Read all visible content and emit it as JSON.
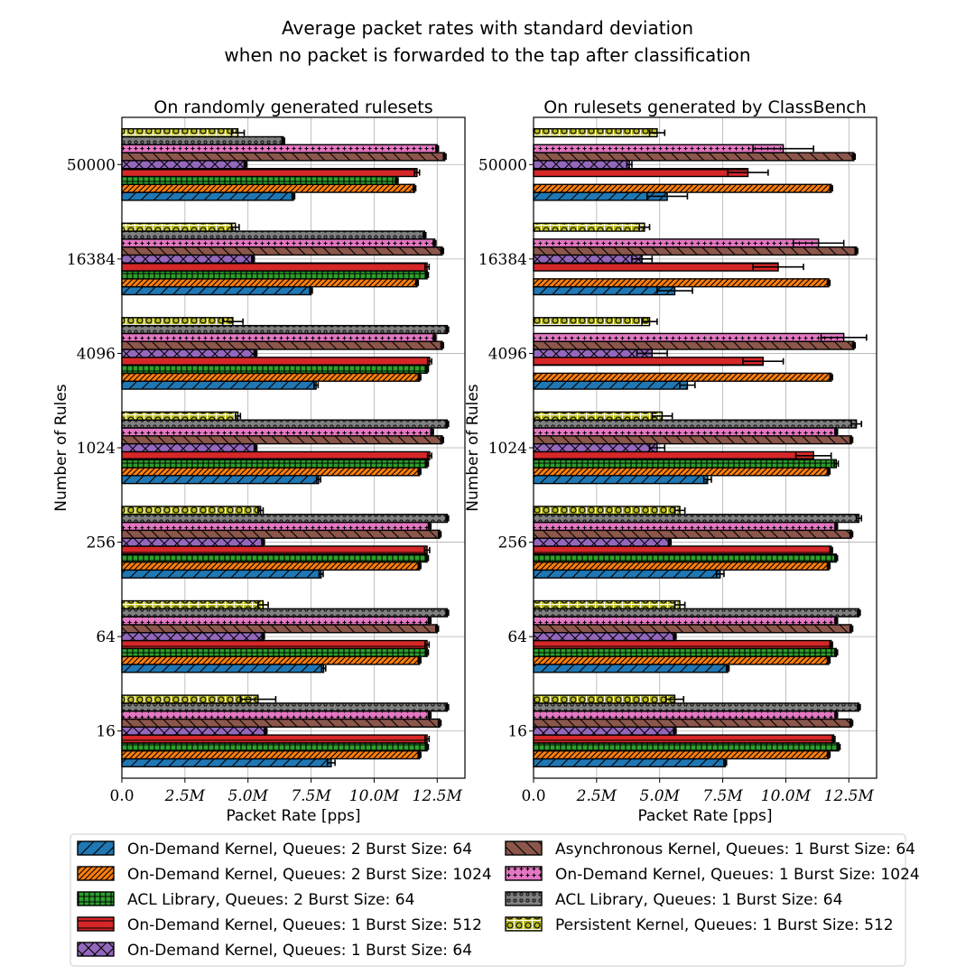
{
  "chart_data": {
    "type": "bar",
    "orientation": "horizontal",
    "title": "Average packet rates with standard deviation",
    "subtitle": "when no packet is forwarded to the tap after classification",
    "xlabel": "Packet Rate [pps]",
    "ylabel": "Number of Rules",
    "categories": [
      "16",
      "64",
      "256",
      "1024",
      "4096",
      "16384",
      "50000"
    ],
    "xlim": [
      0,
      13.6
    ],
    "x_unit": "M pps",
    "xticks": [
      "0.0",
      "2.5M",
      "5.0M",
      "7.5M",
      "10.0M",
      "12.5M"
    ],
    "grid": true,
    "legend_position": "bottom",
    "series": [
      {
        "name": "On-Demand Kernel, Queues: 2 Burst Size: 64",
        "color": "#1f77b4",
        "hatch": "diag"
      },
      {
        "name": "On-Demand Kernel, Queues: 2 Burst Size: 1024",
        "color": "#ff7f0e",
        "hatch": "diag-dense"
      },
      {
        "name": "ACL Library, Queues: 2 Burst Size: 64",
        "color": "#2ca02c",
        "hatch": "grid"
      },
      {
        "name": "On-Demand Kernel, Queues: 1 Burst Size: 512",
        "color": "#d62728",
        "hatch": "hline"
      },
      {
        "name": "On-Demand Kernel, Queues: 1 Burst Size: 64",
        "color": "#9467bd",
        "hatch": "cross"
      },
      {
        "name": "Asynchronous Kernel, Queues: 1 Burst Size: 64",
        "color": "#8c564b",
        "hatch": "backdiag"
      },
      {
        "name": "On-Demand Kernel, Queues: 1 Burst Size: 1024",
        "color": "#e377c2",
        "hatch": "plus"
      },
      {
        "name": "ACL Library, Queues: 1 Burst Size: 64",
        "color": "#7f7f7f",
        "hatch": "dots"
      },
      {
        "name": "Persistent Kernel, Queues: 1 Burst Size: 512",
        "color": "#bcbd22",
        "hatch": "circles"
      }
    ],
    "panels": [
      {
        "title": "On randomly generated rulesets",
        "values": [
          [
            8.3,
            8.0,
            7.9,
            7.8,
            7.7,
            7.5,
            6.8
          ],
          [
            11.8,
            11.8,
            11.8,
            11.8,
            11.8,
            11.7,
            11.6
          ],
          [
            12.1,
            12.1,
            12.1,
            12.1,
            12.1,
            12.1,
            10.9
          ],
          [
            12.1,
            12.1,
            12.1,
            12.2,
            12.2,
            12.1,
            11.7
          ],
          [
            5.7,
            5.6,
            5.6,
            5.3,
            5.3,
            5.2,
            4.9
          ],
          [
            12.6,
            12.5,
            12.6,
            12.7,
            12.7,
            12.7,
            12.8
          ],
          [
            12.2,
            12.2,
            12.2,
            12.3,
            12.4,
            12.4,
            12.5
          ],
          [
            12.9,
            12.9,
            12.9,
            12.9,
            12.9,
            12.0,
            6.4
          ],
          [
            5.4,
            5.6,
            5.5,
            4.6,
            4.4,
            4.5,
            4.6
          ]
        ],
        "errors": [
          [
            0.15,
            0.08,
            0.08,
            0.08,
            0.08,
            0.05,
            0.05
          ],
          [
            0.05,
            0.05,
            0.05,
            0.05,
            0.05,
            0.05,
            0.05
          ],
          [
            0.05,
            0.05,
            0.05,
            0.05,
            0.05,
            0.05,
            0.05
          ],
          [
            0.08,
            0.08,
            0.1,
            0.08,
            0.08,
            0.08,
            0.1
          ],
          [
            0.05,
            0.05,
            0.05,
            0.05,
            0.05,
            0.05,
            0.05
          ],
          [
            0.05,
            0.05,
            0.05,
            0.05,
            0.05,
            0.05,
            0.05
          ],
          [
            0.05,
            0.05,
            0.05,
            0.05,
            0.05,
            0.05,
            0.05
          ],
          [
            0.05,
            0.05,
            0.05,
            0.05,
            0.05,
            0.05,
            0.05
          ],
          [
            0.7,
            0.2,
            0.1,
            0.1,
            0.4,
            0.15,
            0.25
          ]
        ]
      },
      {
        "title": "On rulesets generated by ClassBench",
        "values": [
          [
            7.6,
            7.7,
            7.4,
            6.9,
            6.1,
            5.6,
            5.3
          ],
          [
            11.7,
            11.7,
            11.7,
            11.7,
            11.8,
            11.7,
            11.8
          ],
          [
            12.1,
            12.0,
            12.0,
            12.0,
            0,
            0,
            0
          ],
          [
            11.9,
            11.8,
            11.8,
            11.1,
            9.1,
            9.7,
            8.5
          ],
          [
            5.6,
            5.6,
            5.4,
            4.9,
            4.7,
            4.3,
            3.8
          ],
          [
            12.6,
            12.6,
            12.6,
            12.6,
            12.7,
            12.8,
            12.7
          ],
          [
            12.0,
            12.0,
            12.0,
            12.0,
            12.3,
            11.3,
            9.9
          ],
          [
            12.9,
            12.9,
            12.9,
            12.8,
            0,
            0,
            0
          ],
          [
            5.6,
            5.8,
            5.8,
            5.1,
            4.6,
            4.4,
            4.9
          ]
        ],
        "errors": [
          [
            0.05,
            0.05,
            0.15,
            0.15,
            0.3,
            0.7,
            0.8
          ],
          [
            0.05,
            0.05,
            0.05,
            0.05,
            0.05,
            0.05,
            0.05
          ],
          [
            0.05,
            0.05,
            0.05,
            0.08,
            0,
            0,
            0
          ],
          [
            0.05,
            0.05,
            0.05,
            0.7,
            0.8,
            1.0,
            0.8
          ],
          [
            0.05,
            0.05,
            0.05,
            0.3,
            0.6,
            0.4,
            0.1
          ],
          [
            0.05,
            0.05,
            0.05,
            0.05,
            0.05,
            0.05,
            0.05
          ],
          [
            0.05,
            0.05,
            0.05,
            0.05,
            0.9,
            1.0,
            1.2
          ],
          [
            0.05,
            0.05,
            0.1,
            0.2,
            0,
            0,
            0
          ],
          [
            0.35,
            0.2,
            0.2,
            0.4,
            0.3,
            0.2,
            0.3
          ]
        ]
      }
    ]
  }
}
